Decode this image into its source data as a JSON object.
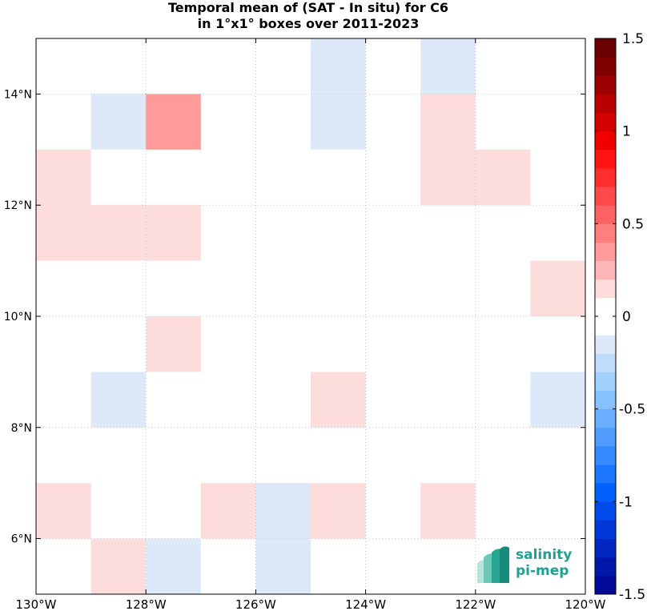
{
  "chart_data": {
    "type": "heatmap",
    "title": "Temporal mean of (SAT - In situ) for C6",
    "subtitle": "in 1°x1° boxes over 2011-2023",
    "xlim": [
      -130,
      -120
    ],
    "ylim": [
      5,
      15
    ],
    "x_ticks": [
      -130,
      -128,
      -126,
      -124,
      -122,
      -120
    ],
    "x_tick_labels": [
      "130°W",
      "128°W",
      "126°W",
      "124°W",
      "122°W",
      "120°W"
    ],
    "y_ticks": [
      6,
      8,
      10,
      12,
      14
    ],
    "y_tick_labels": [
      "6°N",
      "8°N",
      "10°N",
      "12°N",
      "14°N"
    ],
    "grid": true,
    "cells": [
      {
        "lon": -125,
        "lat": 14,
        "value": -0.1
      },
      {
        "lon": -123,
        "lat": 14,
        "value": -0.1
      },
      {
        "lon": -129,
        "lat": 13,
        "value": -0.1
      },
      {
        "lon": -128,
        "lat": 13,
        "value": 0.3
      },
      {
        "lon": -125,
        "lat": 13,
        "value": -0.1
      },
      {
        "lon": -123,
        "lat": 13,
        "value": 0.1
      },
      {
        "lon": -130,
        "lat": 12,
        "value": 0.1
      },
      {
        "lon": -123,
        "lat": 12,
        "value": 0.1
      },
      {
        "lon": -122,
        "lat": 12,
        "value": 0.1
      },
      {
        "lon": -130,
        "lat": 11,
        "value": 0.1
      },
      {
        "lon": -129,
        "lat": 11,
        "value": 0.1
      },
      {
        "lon": -128,
        "lat": 11,
        "value": 0.1
      },
      {
        "lon": -121,
        "lat": 10,
        "value": 0.1
      },
      {
        "lon": -128,
        "lat": 9,
        "value": 0.1
      },
      {
        "lon": -129,
        "lat": 8,
        "value": -0.1
      },
      {
        "lon": -125,
        "lat": 8,
        "value": 0.1
      },
      {
        "lon": -121,
        "lat": 8,
        "value": -0.1
      },
      {
        "lon": -130,
        "lat": 6,
        "value": 0.1
      },
      {
        "lon": -127,
        "lat": 6,
        "value": 0.1
      },
      {
        "lon": -126,
        "lat": 6,
        "value": -0.1
      },
      {
        "lon": -125,
        "lat": 6,
        "value": 0.1
      },
      {
        "lon": -123,
        "lat": 6,
        "value": 0.1
      },
      {
        "lon": -129,
        "lat": 5,
        "value": 0.1
      },
      {
        "lon": -128,
        "lat": 5,
        "value": -0.1
      },
      {
        "lon": -126,
        "lat": 5,
        "value": -0.1
      }
    ],
    "colorbar": {
      "range": [
        -1.5,
        1.5
      ],
      "ticks": [
        1.5,
        1,
        0.5,
        0,
        -0.5,
        -1,
        -1.5
      ],
      "tick_labels": [
        "1.5",
        "1",
        "0.5",
        "0",
        "-0.5",
        "-1",
        "-1.5"
      ],
      "colors": [
        "#000a96",
        "#0018aa",
        "#0028c0",
        "#0038d8",
        "#004aec",
        "#0060ff",
        "#1a76ff",
        "#358aff",
        "#509dff",
        "#6aaeff",
        "#85c0ff",
        "#a2d0ff",
        "#bfddfa",
        "#dde9f9",
        "#ffffff",
        "#ffffff",
        "#fddcdc",
        "#ffb6b6",
        "#ff9a9a",
        "#ff7e7e",
        "#ff6262",
        "#ff4848",
        "#ff2e2e",
        "#ff1414",
        "#f00000",
        "#d40000",
        "#b80000",
        "#9c0000",
        "#800000",
        "#6a0000"
      ]
    }
  },
  "logo": {
    "line1": "salinity",
    "line2": "pi-mep"
  }
}
